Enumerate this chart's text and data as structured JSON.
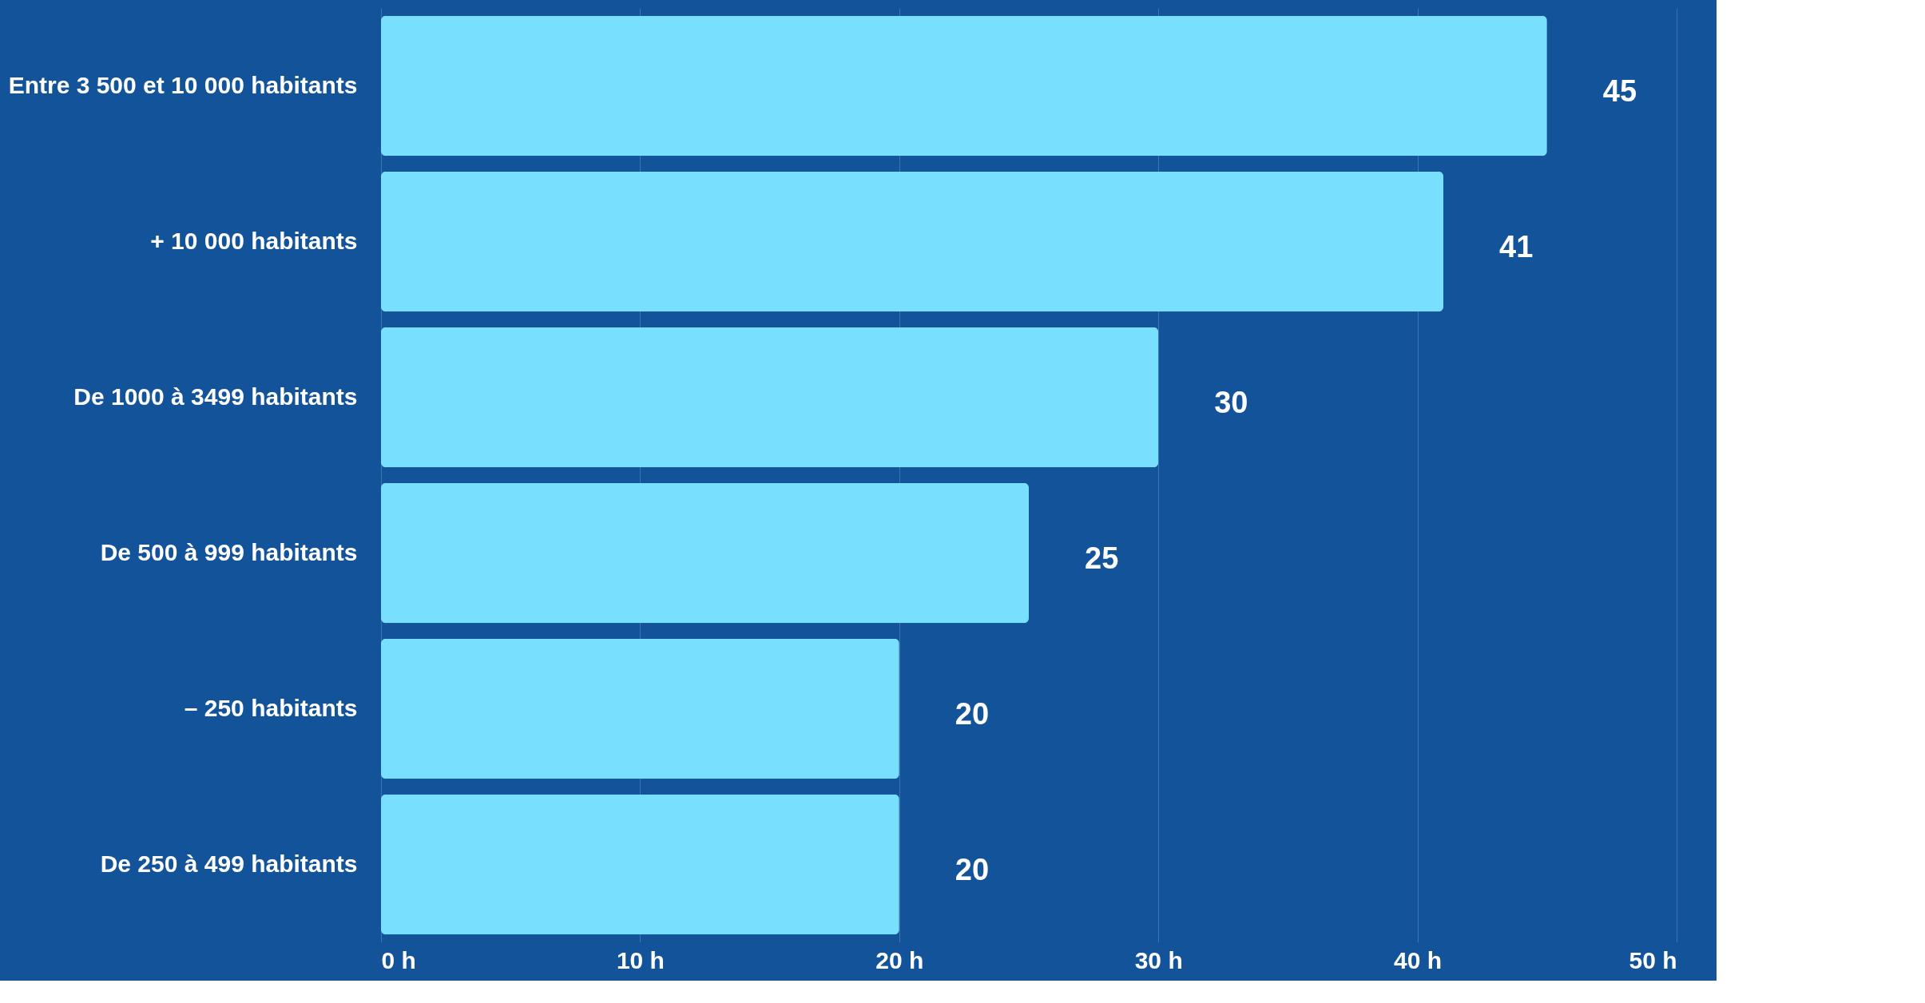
{
  "chart_data": {
    "type": "bar",
    "orientation": "horizontal",
    "categories": [
      "Entre 3 500 et 10 000 habitants",
      "+ 10 000 habitants",
      "De 1000 à 3499 habitants",
      "De 500 à 999 habitants",
      "– 250 habitants",
      "De 250 à 499 habitants"
    ],
    "values": [
      45,
      41,
      30,
      25,
      20,
      20
    ],
    "color": "#78dfff",
    "xlim": [
      0,
      50
    ],
    "xticks": [
      {
        "value": 0,
        "label": "0 h"
      },
      {
        "value": 10,
        "label": "10 h"
      },
      {
        "value": 20,
        "label": "20 h"
      },
      {
        "value": 30,
        "label": "30 h"
      },
      {
        "value": 40,
        "label": "40 h"
      },
      {
        "value": 50,
        "label": "50 h"
      }
    ],
    "grid": "x",
    "data_labels": true
  }
}
